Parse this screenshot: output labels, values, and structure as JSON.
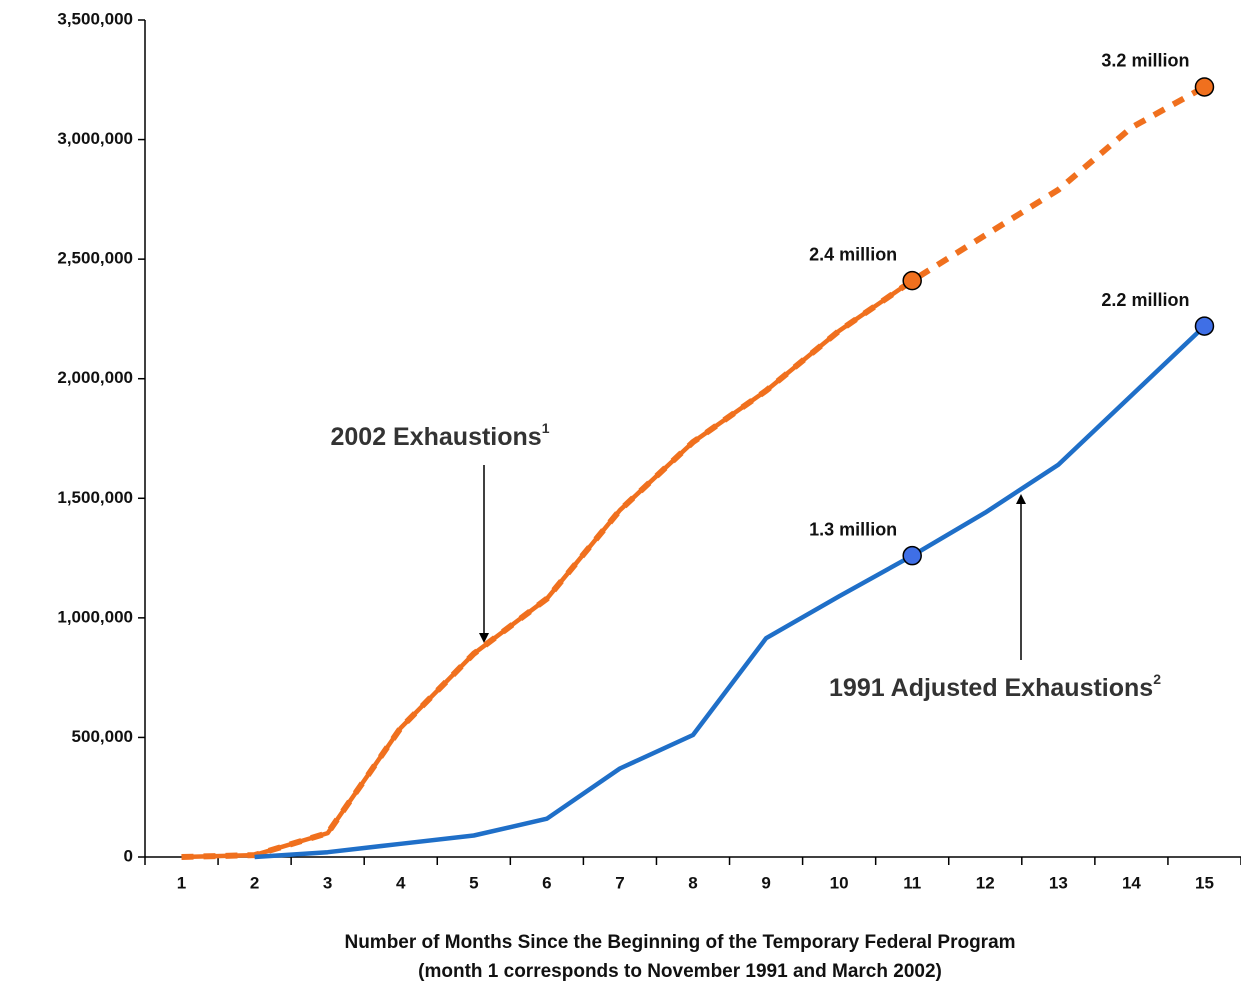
{
  "chart_data": {
    "type": "line",
    "categories": [
      "1",
      "2",
      "3",
      "4",
      "5",
      "6",
      "7",
      "8",
      "9",
      "10",
      "11",
      "12",
      "13",
      "14",
      "15"
    ],
    "series": [
      {
        "color": "#f0701e",
        "dash": false,
        "values": [
          0,
          8000,
          100000,
          540000,
          850000,
          1080000,
          1450000,
          1735000,
          1950000,
          2200000,
          2410000,
          null,
          null,
          null,
          null
        ],
        "value_labels": [
          null,
          null,
          null,
          null,
          null,
          null,
          null,
          null,
          null,
          null,
          "2.4 million",
          null,
          null,
          null,
          null
        ]
      },
      {
        "color": "#f0701e",
        "dash": true,
        "values": [
          0,
          8000,
          100000,
          540000,
          850000,
          1080000,
          1450000,
          1735000,
          1950000,
          2200000,
          2410000,
          2600000,
          2790000,
          3050000,
          3220000
        ],
        "value_labels": [
          null,
          null,
          null,
          null,
          null,
          null,
          null,
          null,
          null,
          null,
          null,
          null,
          null,
          null,
          "3.2 million"
        ]
      },
      {
        "color": "#1f6fc8",
        "marker_color": "#3f6fe6",
        "dash": false,
        "values": [
          null,
          0,
          20000,
          55000,
          90000,
          160000,
          370000,
          510000,
          915000,
          1090000,
          1260000,
          1440000,
          1640000,
          1930000,
          2220000
        ],
        "value_labels": [
          null,
          null,
          null,
          null,
          null,
          null,
          null,
          null,
          null,
          null,
          "1.3 million",
          null,
          null,
          null,
          "2.2 million"
        ]
      }
    ],
    "ylim": [
      0,
      3500000
    ],
    "yticks": [
      0,
      {
        "value": 500000,
        "label": "500,000"
      },
      {
        "value": 1000000,
        "label": "1,000,000"
      },
      {
        "value": 1500000,
        "label": "1,500,000"
      },
      {
        "value": 2000000,
        "label": "2,000,000"
      },
      {
        "value": 2500000,
        "label": "2,500,000"
      },
      {
        "value": 3000000,
        "label": "3,000,000"
      },
      {
        "value": 3500000,
        "label": "3,500,000"
      }
    ],
    "x_label": [
      "Number of Months Since the Beginning of the Temporary Federal Program",
      "(month 1 corresponds to November 1991 and March 2002)"
    ],
    "annotations": [
      {
        "text": "2002 Exhaustions",
        "sup": "1"
      },
      {
        "text": "1991 Adjusted Exhaustions",
        "sup": "2"
      }
    ],
    "grid": false
  }
}
